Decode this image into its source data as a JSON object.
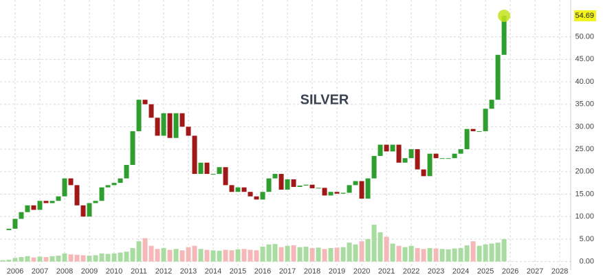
{
  "chart_data": {
    "type": "candlestick",
    "title": "SILVER",
    "x": [
      2005.5,
      2005.75,
      2006,
      2006.25,
      2006.5,
      2006.75,
      2007,
      2007.25,
      2007.5,
      2007.75,
      2008,
      2008.25,
      2008.5,
      2008.75,
      2009,
      2009.25,
      2009.5,
      2009.75,
      2010,
      2010.25,
      2010.5,
      2010.75,
      2011,
      2011.25,
      2011.5,
      2011.75,
      2012,
      2012.25,
      2012.5,
      2012.75,
      2013,
      2013.25,
      2013.5,
      2013.75,
      2014,
      2014.25,
      2014.5,
      2014.75,
      2015,
      2015.25,
      2015.5,
      2015.75,
      2016,
      2016.25,
      2016.5,
      2016.75,
      2017,
      2017.25,
      2017.5,
      2017.75,
      2018,
      2018.25,
      2018.5,
      2018.75,
      2019,
      2019.25,
      2019.5,
      2019.75,
      2020,
      2020.25,
      2020.5,
      2020.75,
      2021,
      2021.25,
      2021.5,
      2021.75,
      2022,
      2022.25,
      2022.5,
      2022.75,
      2023,
      2023.25,
      2023.5,
      2023.75,
      2024,
      2024.25,
      2024.5,
      2024.75,
      2025,
      2025.25,
      2025.5,
      2025.75
    ],
    "closes": [
      7.0,
      7.3,
      9.5,
      11,
      12.5,
      11.5,
      13.5,
      13.0,
      13.5,
      14.5,
      18.5,
      17.0,
      12.5,
      10.0,
      13,
      13.5,
      16.5,
      17.0,
      17.5,
      18.5,
      21.5,
      29,
      36,
      35,
      32,
      28,
      33,
      27.5,
      33,
      30,
      28,
      19.5,
      22,
      19.5,
      19.5,
      21,
      17,
      15.5,
      16.5,
      15.5,
      14.5,
      13.8,
      15.5,
      18.5,
      19.5,
      16,
      18.3,
      16.6,
      16.9,
      17.1,
      16.3,
      16.4,
      14.7,
      15.5,
      15.1,
      15.3,
      17,
      17.9,
      14,
      18.5,
      23.5,
      26,
      24.5,
      26,
      22,
      23,
      25,
      20.5,
      19,
      24,
      23,
      23,
      23,
      24,
      25,
      29.5,
      29,
      29,
      34,
      36,
      46,
      54.69
    ],
    "volumes": [
      0.3,
      0.4,
      0.8,
      1.0,
      1.2,
      0.9,
      1.1,
      1.0,
      1.2,
      1.3,
      1.8,
      1.6,
      1.5,
      1.4,
      1.3,
      1.4,
      1.8,
      1.7,
      1.8,
      2.0,
      2.2,
      3.0,
      4.5,
      5.2,
      3.5,
      2.8,
      3.0,
      2.6,
      2.8,
      2.5,
      3.2,
      3.5,
      2.8,
      2.6,
      2.5,
      2.4,
      2.6,
      2.5,
      2.7,
      2.8,
      2.6,
      2.5,
      3.3,
      3.8,
      3.9,
      3.2,
      3.5,
      3.6,
      3.2,
      3.3,
      3.0,
      3.1,
      2.8,
      3.0,
      3.1,
      3.2,
      4.2,
      3.8,
      4.5,
      5.0,
      8.2,
      6.5,
      5.5,
      4.0,
      3.5,
      3.2,
      3.5,
      3.0,
      2.8,
      3.0,
      2.9,
      2.8,
      2.7,
      2.9,
      3.0,
      3.6,
      4.5,
      3.5,
      3.8,
      4.0,
      4.2,
      5.0
    ],
    "up_color": "#2e9e2e",
    "down_color": "#a01818",
    "volume_up_color": "#a8dca0",
    "volume_down_color": "#f4b8b8",
    "marker_color": "#c6e21e",
    "label_color": "#f3f31e",
    "xlim": [
      2005.39,
      2028.44
    ],
    "xticks": [
      2006,
      2007,
      2008,
      2009,
      2010,
      2011,
      2012,
      2013,
      2014,
      2015,
      2016,
      2017,
      2018,
      2019,
      2020,
      2021,
      2022,
      2023,
      2024,
      2025,
      2026,
      2027,
      2028
    ],
    "ylim": [
      -1.9,
      58.2
    ],
    "yticks": [
      {
        "value": 0,
        "label": "0.00"
      },
      {
        "value": 5,
        "label": "5.00"
      },
      {
        "value": 10,
        "label": "10.00"
      },
      {
        "value": 15,
        "label": "15.00"
      },
      {
        "value": 20,
        "label": "20.00"
      },
      {
        "value": 25,
        "label": "25.00"
      },
      {
        "value": 30,
        "label": "30.00"
      },
      {
        "value": 35,
        "label": "35.00"
      },
      {
        "value": 40,
        "label": "40.00"
      },
      {
        "value": 45,
        "label": "45.00"
      },
      {
        "value": 50,
        "label": "50.00"
      }
    ],
    "grid": true
  }
}
